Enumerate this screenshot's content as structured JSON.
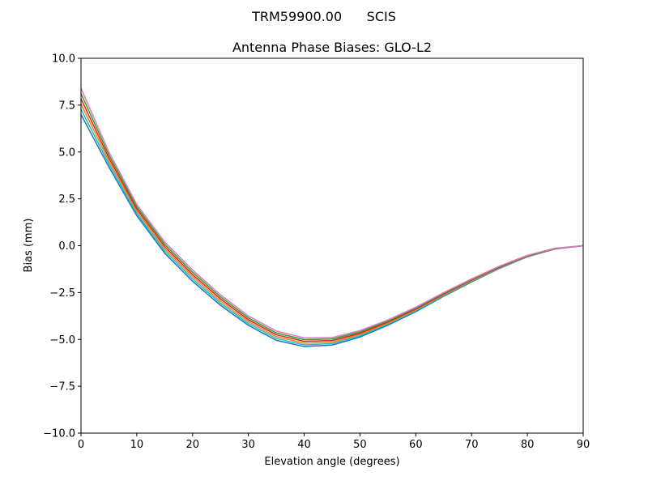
{
  "suptitle": "TRM59900.00      SCIS",
  "chart_data": {
    "type": "line",
    "title": "Antenna Phase Biases: GLO-L2",
    "xlabel": "Elevation angle (degrees)",
    "ylabel": "Bias (mm)",
    "xlim": [
      0,
      90
    ],
    "ylim": [
      -10,
      10
    ],
    "xticks": [
      0,
      10,
      20,
      30,
      40,
      50,
      60,
      70,
      80,
      90
    ],
    "yticks": [
      10.0,
      7.5,
      5.0,
      2.5,
      0.0,
      -2.5,
      -5.0,
      -7.5,
      -10.0
    ],
    "ytick_labels": [
      "10.0",
      "7.5",
      "5.0",
      "2.5",
      "0.0",
      "−2.5",
      "−5.0",
      "−7.5",
      "−10.0"
    ],
    "grid": false,
    "x": [
      0,
      5,
      10,
      15,
      20,
      25,
      30,
      35,
      40,
      45,
      50,
      55,
      60,
      65,
      70,
      75,
      80,
      85,
      90
    ],
    "series": [
      {
        "color": "#1f77b4",
        "values": [
          7.0,
          4.2,
          1.6,
          -0.4,
          -1.9,
          -3.18,
          -4.25,
          -5.05,
          -5.38,
          -5.3,
          -4.87,
          -4.24,
          -3.52,
          -2.7,
          -1.93,
          -1.21,
          -0.59,
          -0.17,
          0
        ]
      },
      {
        "color": "#17becf",
        "values": [
          7.28,
          4.36,
          1.72,
          -0.28,
          -1.78,
          -3.07,
          -4.15,
          -4.95,
          -5.29,
          -5.22,
          -4.8,
          -4.18,
          -3.47,
          -2.66,
          -1.9,
          -1.19,
          -0.57,
          -0.16,
          0
        ]
      },
      {
        "color": "#ff7f0e",
        "values": [
          7.56,
          4.52,
          1.84,
          -0.16,
          -1.66,
          -2.96,
          -4.05,
          -4.85,
          -5.2,
          -5.14,
          -4.73,
          -4.13,
          -3.42,
          -2.62,
          -1.87,
          -1.16,
          -0.56,
          -0.15,
          0
        ]
      },
      {
        "color": "#d62728",
        "values": [
          7.84,
          4.68,
          1.96,
          -0.04,
          -1.54,
          -2.84,
          -3.95,
          -4.75,
          -5.1,
          -5.06,
          -4.67,
          -4.07,
          -3.38,
          -2.58,
          -1.83,
          -1.14,
          -0.54,
          -0.15,
          0
        ]
      },
      {
        "color": "#2ca02c",
        "values": [
          8.12,
          4.84,
          2.08,
          0.08,
          -1.42,
          -2.73,
          -3.85,
          -4.65,
          -5.01,
          -4.98,
          -4.6,
          -4.02,
          -3.33,
          -2.54,
          -1.8,
          -1.11,
          -0.53,
          -0.14,
          0
        ]
      },
      {
        "color": "#e377c2",
        "values": [
          8.4,
          5.0,
          2.2,
          0.2,
          -1.3,
          -2.62,
          -3.75,
          -4.55,
          -4.92,
          -4.9,
          -4.53,
          -3.96,
          -3.28,
          -2.5,
          -1.77,
          -1.09,
          -0.51,
          -0.13,
          0
        ]
      }
    ]
  }
}
